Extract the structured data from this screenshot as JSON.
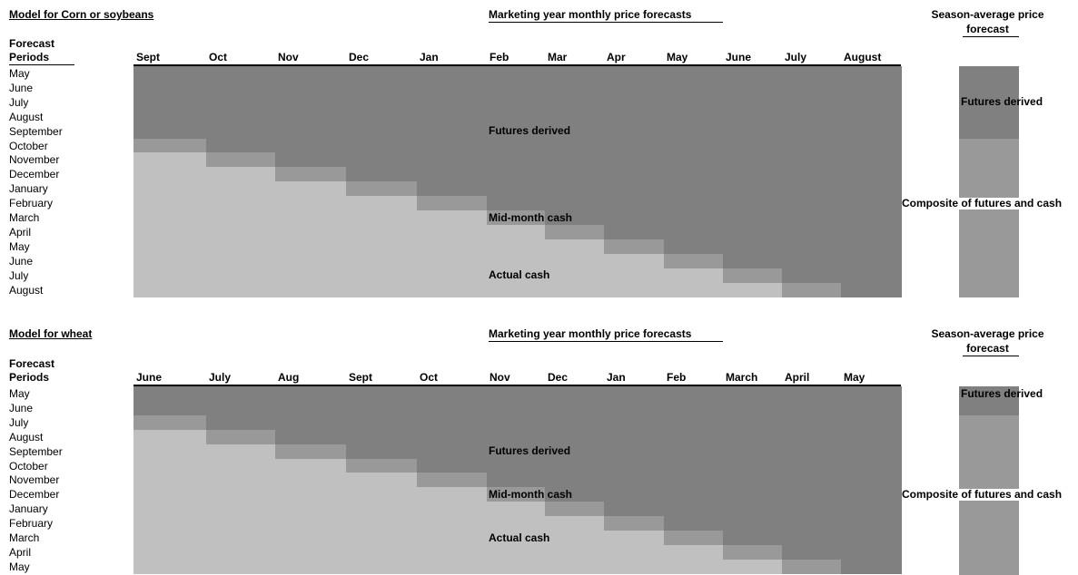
{
  "colors": {
    "futures_derived": "#808080",
    "mid_month_cash": "#999999",
    "actual_cash": "#c0c0c0"
  },
  "panels": [
    {
      "title": "Model for Corn or soybeans",
      "monthly_title": "Marketing year monthly price forecasts",
      "season_title_1": "Season-average price",
      "season_title_2": "forecast",
      "periods_header_1": "Forecast",
      "periods_header_2": "Periods",
      "columns": [
        "Sept",
        "Oct",
        "Nov",
        "Dec",
        "Jan",
        "Feb",
        "Mar",
        "Apr",
        "May",
        "June",
        "July",
        "August"
      ],
      "periods": [
        "May",
        "June",
        "July",
        "August",
        "September",
        "October",
        "November",
        "December",
        "January",
        "February",
        "March",
        "April",
        "May",
        "June",
        "July",
        "August"
      ],
      "region_labels": {
        "futures": "Futures derived",
        "mid": "Mid-month cash",
        "actual": "Actual cash"
      },
      "season_labels": {
        "futures": "Futures derived",
        "composite": "Composite of futures and cash"
      }
    },
    {
      "title": "Model for wheat",
      "monthly_title": "Marketing year monthly price forecasts",
      "season_title_1": "Season-average price",
      "season_title_2": "forecast",
      "periods_header_1": "Forecast",
      "periods_header_2": "Periods",
      "columns": [
        "June",
        "July",
        "Aug",
        "Sept",
        "Oct",
        "Nov",
        "Dec",
        "Jan",
        "Feb",
        "March",
        "April",
        "May"
      ],
      "periods": [
        "May",
        "June",
        "July",
        "August",
        "September",
        "October",
        "November",
        "December",
        "January",
        "February",
        "March",
        "April",
        "May"
      ],
      "region_labels": {
        "futures": "Futures derived",
        "mid": "Mid-month cash",
        "actual": "Actual cash"
      },
      "season_labels": {
        "futures": "Futures derived",
        "composite": "Composite of futures and cash"
      }
    }
  ]
}
